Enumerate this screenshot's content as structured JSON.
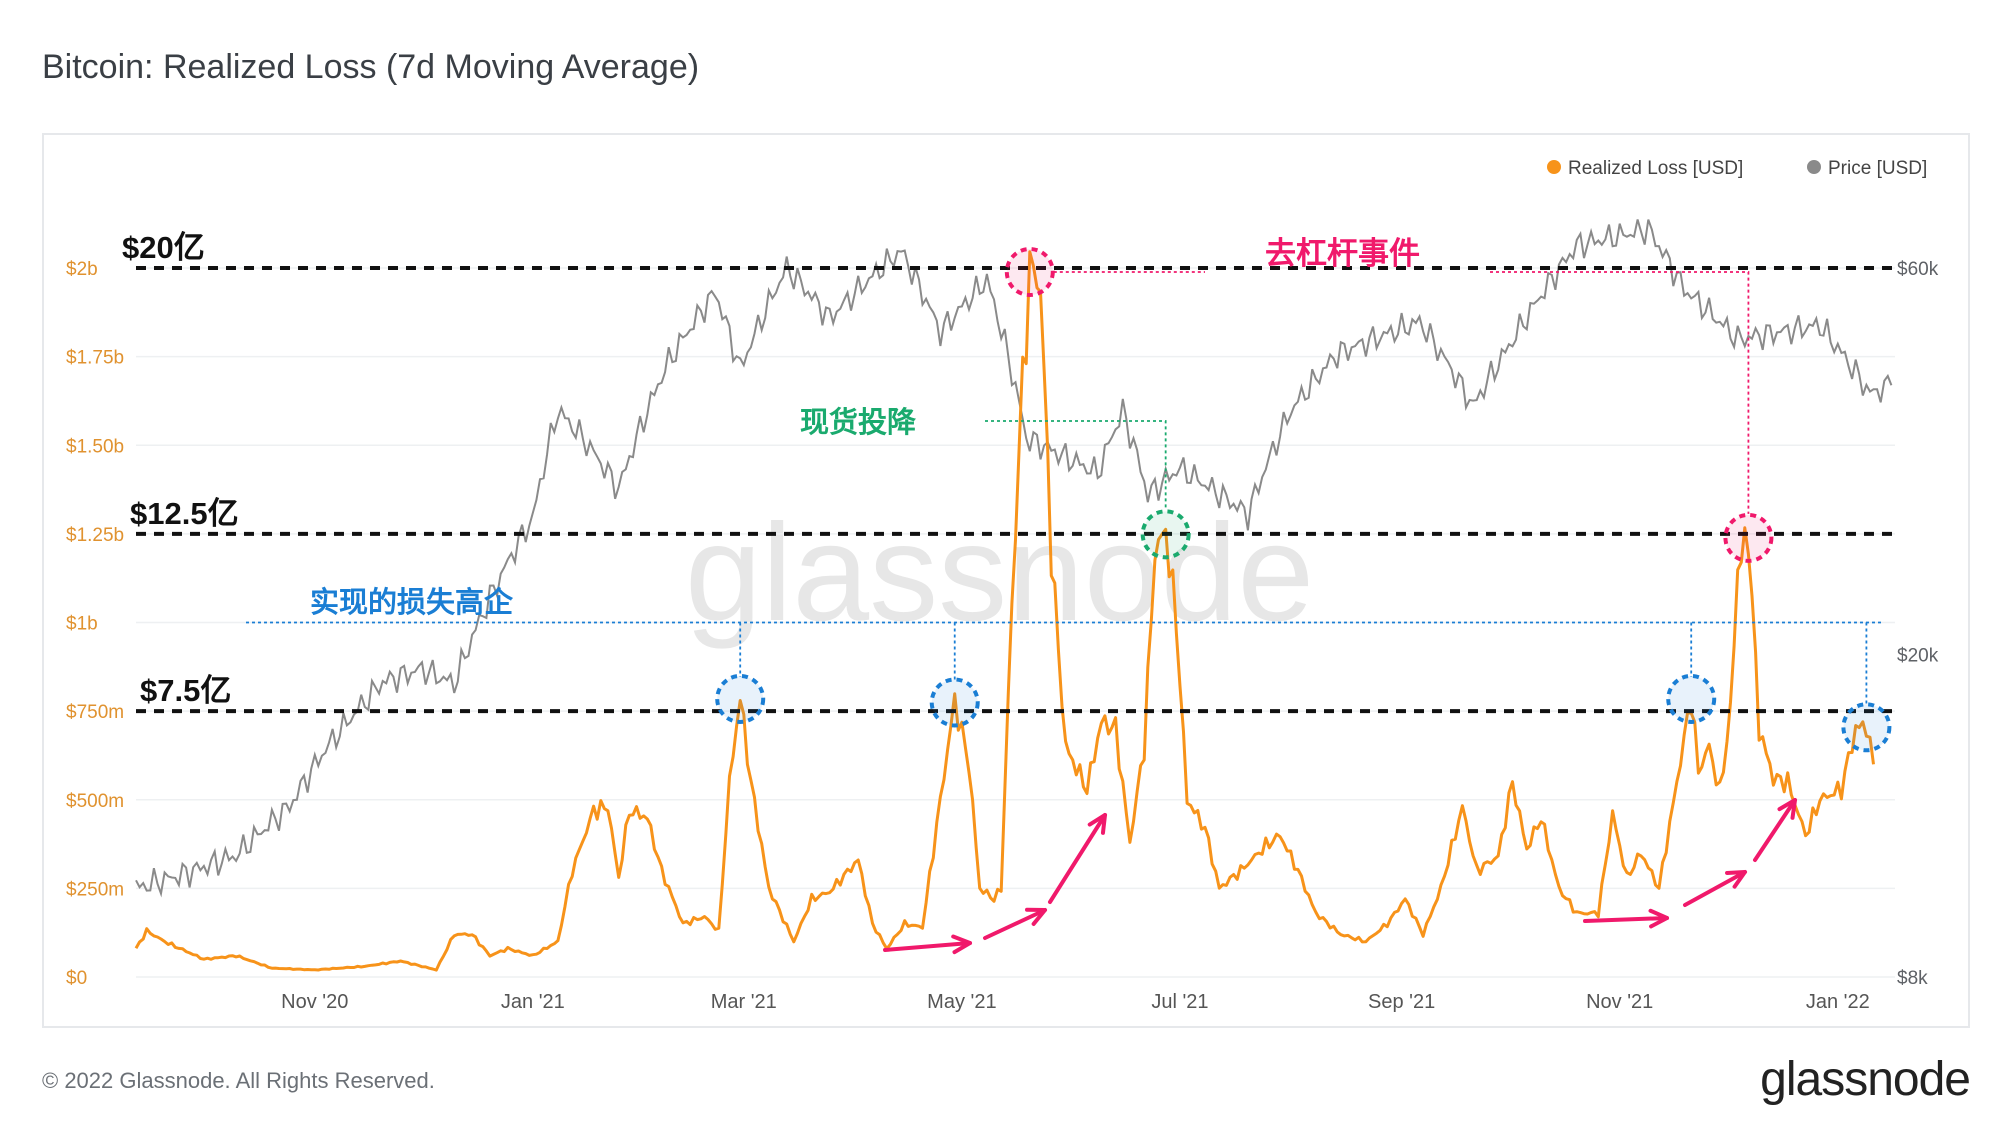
{
  "title": "Bitcoin: Realized Loss (7d Moving Average)",
  "footer": {
    "copyright": "© 2022 Glassnode. All Rights Reserved.",
    "logo": "glassnode"
  },
  "watermark": "glassnode",
  "colors": {
    "loss": "#f7931a",
    "price": "#8a8a8a",
    "red": "#f0196b",
    "green": "#1aaa6e",
    "blue": "#1a7ed4",
    "axis_loss": "#e0922f",
    "axis_price": "#5e6166"
  },
  "chart_data": {
    "type": "line",
    "title": "Bitcoin: Realized Loss (7d Moving Average)",
    "x_range": [
      "2020-09-12",
      "2022-01-17"
    ],
    "x_ticks": [
      {
        "label": "Nov '20",
        "date": "2020-11-01"
      },
      {
        "label": "Jan '21",
        "date": "2021-01-01"
      },
      {
        "label": "Mar '21",
        "date": "2021-03-01"
      },
      {
        "label": "May '21",
        "date": "2021-05-01"
      },
      {
        "label": "Jul '21",
        "date": "2021-07-01"
      },
      {
        "label": "Sep '21",
        "date": "2021-09-01"
      },
      {
        "label": "Nov '21",
        "date": "2021-11-01"
      },
      {
        "label": "Jan '22",
        "date": "2022-01-01"
      }
    ],
    "y_left": {
      "label": "Realized Loss [USD]",
      "range": [
        0,
        2000000000
      ],
      "ticks": [
        {
          "label": "$0",
          "value": 0
        },
        {
          "label": "$250m",
          "value": 250000000
        },
        {
          "label": "$500m",
          "value": 500000000
        },
        {
          "label": "$750m",
          "value": 750000000
        },
        {
          "label": "$1b",
          "value": 1000000000
        },
        {
          "label": "$1.25b",
          "value": 1250000000
        },
        {
          "label": "$1.50b",
          "value": 1500000000
        },
        {
          "label": "$1.75b",
          "value": 1750000000
        },
        {
          "label": "$2b",
          "value": 2000000000
        }
      ]
    },
    "y_right": {
      "label": "Price [USD]",
      "scale": "log",
      "range": [
        8000,
        60000
      ],
      "ticks": [
        {
          "label": "$8k",
          "value": 8000
        },
        {
          "label": "$20k",
          "value": 20000
        },
        {
          "label": "$60k",
          "value": 60000
        }
      ]
    },
    "legend": {
      "position": "top-right",
      "items": [
        {
          "name": "Realized Loss [USD]",
          "color": "#f7931a"
        },
        {
          "name": "Price [USD]",
          "color": "#8a8a8a"
        }
      ]
    },
    "series": [
      {
        "name": "Realized Loss [USD]",
        "unit": "million USD",
        "axis": "left",
        "points": [
          [
            "2020-09-12",
            80
          ],
          [
            "2020-09-15",
            130
          ],
          [
            "2020-09-20",
            100
          ],
          [
            "2020-10-01",
            50
          ],
          [
            "2020-10-10",
            60
          ],
          [
            "2020-10-20",
            25
          ],
          [
            "2020-11-01",
            20
          ],
          [
            "2020-11-15",
            30
          ],
          [
            "2020-11-25",
            45
          ],
          [
            "2020-12-05",
            20
          ],
          [
            "2020-12-10",
            120
          ],
          [
            "2020-12-15",
            120
          ],
          [
            "2020-12-20",
            60
          ],
          [
            "2020-12-25",
            80
          ],
          [
            "2021-01-01",
            60
          ],
          [
            "2021-01-08",
            100
          ],
          [
            "2021-01-12",
            300
          ],
          [
            "2021-01-18",
            470
          ],
          [
            "2021-01-22",
            480
          ],
          [
            "2021-01-25",
            280
          ],
          [
            "2021-01-28",
            470
          ],
          [
            "2021-02-02",
            450
          ],
          [
            "2021-02-06",
            300
          ],
          [
            "2021-02-12",
            150
          ],
          [
            "2021-02-18",
            170
          ],
          [
            "2021-02-22",
            130
          ],
          [
            "2021-02-25",
            550
          ],
          [
            "2021-02-28",
            790
          ],
          [
            "2021-03-03",
            550
          ],
          [
            "2021-03-08",
            250
          ],
          [
            "2021-03-15",
            100
          ],
          [
            "2021-03-20",
            220
          ],
          [
            "2021-03-25",
            240
          ],
          [
            "2021-04-02",
            330
          ],
          [
            "2021-04-06",
            150
          ],
          [
            "2021-04-10",
            80
          ],
          [
            "2021-04-15",
            150
          ],
          [
            "2021-04-20",
            140
          ],
          [
            "2021-04-25",
            500
          ],
          [
            "2021-04-29",
            780
          ],
          [
            "2021-05-03",
            600
          ],
          [
            "2021-05-06",
            250
          ],
          [
            "2021-05-10",
            220
          ],
          [
            "2021-05-12",
            250
          ],
          [
            "2021-05-14",
            800
          ],
          [
            "2021-05-17",
            1500
          ],
          [
            "2021-05-20",
            2000
          ],
          [
            "2021-05-23",
            1950
          ],
          [
            "2021-05-26",
            1200
          ],
          [
            "2021-05-30",
            650
          ],
          [
            "2021-06-05",
            530
          ],
          [
            "2021-06-09",
            720
          ],
          [
            "2021-06-13",
            700
          ],
          [
            "2021-06-17",
            380
          ],
          [
            "2021-06-21",
            650
          ],
          [
            "2021-06-24",
            1200
          ],
          [
            "2021-06-27",
            1260
          ],
          [
            "2021-06-30",
            1000
          ],
          [
            "2021-07-03",
            500
          ],
          [
            "2021-07-08",
            420
          ],
          [
            "2021-07-12",
            250
          ],
          [
            "2021-07-18",
            300
          ],
          [
            "2021-07-25",
            370
          ],
          [
            "2021-07-29",
            400
          ],
          [
            "2021-08-03",
            300
          ],
          [
            "2021-08-08",
            180
          ],
          [
            "2021-08-15",
            120
          ],
          [
            "2021-08-22",
            100
          ],
          [
            "2021-08-28",
            150
          ],
          [
            "2021-09-02",
            220
          ],
          [
            "2021-09-07",
            120
          ],
          [
            "2021-09-12",
            250
          ],
          [
            "2021-09-18",
            480
          ],
          [
            "2021-09-22",
            300
          ],
          [
            "2021-09-28",
            340
          ],
          [
            "2021-10-02",
            550
          ],
          [
            "2021-10-06",
            360
          ],
          [
            "2021-10-10",
            450
          ],
          [
            "2021-10-15",
            250
          ],
          [
            "2021-10-20",
            180
          ],
          [
            "2021-10-26",
            180
          ],
          [
            "2021-10-30",
            460
          ],
          [
            "2021-11-03",
            280
          ],
          [
            "2021-11-07",
            350
          ],
          [
            "2021-11-12",
            250
          ],
          [
            "2021-11-17",
            550
          ],
          [
            "2021-11-21",
            790
          ],
          [
            "2021-11-23",
            580
          ],
          [
            "2021-11-26",
            650
          ],
          [
            "2021-11-29",
            520
          ],
          [
            "2021-12-02",
            750
          ],
          [
            "2021-12-04",
            1150
          ],
          [
            "2021-12-07",
            1250
          ],
          [
            "2021-12-10",
            700
          ],
          [
            "2021-12-14",
            560
          ],
          [
            "2021-12-18",
            550
          ],
          [
            "2021-12-23",
            400
          ],
          [
            "2021-12-27",
            500
          ],
          [
            "2022-01-02",
            530
          ],
          [
            "2022-01-06",
            700
          ],
          [
            "2022-01-09",
            710
          ],
          [
            "2022-01-11",
            600
          ]
        ]
      },
      {
        "name": "Price [USD]",
        "unit": "USD",
        "axis": "right",
        "points": [
          [
            "2020-09-12",
            10300
          ],
          [
            "2020-09-25",
            10700
          ],
          [
            "2020-10-10",
            11300
          ],
          [
            "2020-10-25",
            13000
          ],
          [
            "2020-11-05",
            15500
          ],
          [
            "2020-11-20",
            18500
          ],
          [
            "2020-12-01",
            19200
          ],
          [
            "2020-12-10",
            18400
          ],
          [
            "2020-12-20",
            23500
          ],
          [
            "2021-01-01",
            29500
          ],
          [
            "2021-01-08",
            40000
          ],
          [
            "2021-01-15",
            37000
          ],
          [
            "2021-01-25",
            32000
          ],
          [
            "2021-02-08",
            46000
          ],
          [
            "2021-02-21",
            56000
          ],
          [
            "2021-02-28",
            45000
          ],
          [
            "2021-03-13",
            60000
          ],
          [
            "2021-03-25",
            52000
          ],
          [
            "2021-04-14",
            63000
          ],
          [
            "2021-04-25",
            50000
          ],
          [
            "2021-05-08",
            58000
          ],
          [
            "2021-05-19",
            37000
          ],
          [
            "2021-06-08",
            33500
          ],
          [
            "2021-06-15",
            40000
          ],
          [
            "2021-06-22",
            31500
          ],
          [
            "2021-07-01",
            34000
          ],
          [
            "2021-07-20",
            29800
          ],
          [
            "2021-08-01",
            40000
          ],
          [
            "2021-08-14",
            47000
          ],
          [
            "2021-09-06",
            51500
          ],
          [
            "2021-09-21",
            40500
          ],
          [
            "2021-10-01",
            48000
          ],
          [
            "2021-10-20",
            64000
          ],
          [
            "2021-11-09",
            67000
          ],
          [
            "2021-11-19",
            56500
          ],
          [
            "2021-12-04",
            49000
          ],
          [
            "2021-12-27",
            51000
          ],
          [
            "2022-01-10",
            42000
          ],
          [
            "2022-01-16",
            43000
          ]
        ]
      }
    ],
    "reference_lines": [
      {
        "label": "$20亿",
        "value": 2000000000
      },
      {
        "label": "$12.5亿",
        "value": 1250000000
      },
      {
        "label": "$7.5亿",
        "value": 750000000
      }
    ],
    "annotations": {
      "deleverage": "去杠杆事件",
      "capitulation": "现货投降",
      "realized_loss_highs": "实现的损失高企"
    },
    "highlighted_peaks": [
      {
        "date": "2021-05-20",
        "group": "deleverage"
      },
      {
        "date": "2021-12-07",
        "group": "deleverage"
      },
      {
        "date": "2021-06-27",
        "group": "capitulation"
      },
      {
        "date": "2021-02-28",
        "group": "realized_loss_highs"
      },
      {
        "date": "2021-04-29",
        "group": "realized_loss_highs"
      },
      {
        "date": "2021-11-21",
        "group": "realized_loss_highs"
      },
      {
        "date": "2022-01-09",
        "group": "realized_loss_highs"
      }
    ]
  }
}
